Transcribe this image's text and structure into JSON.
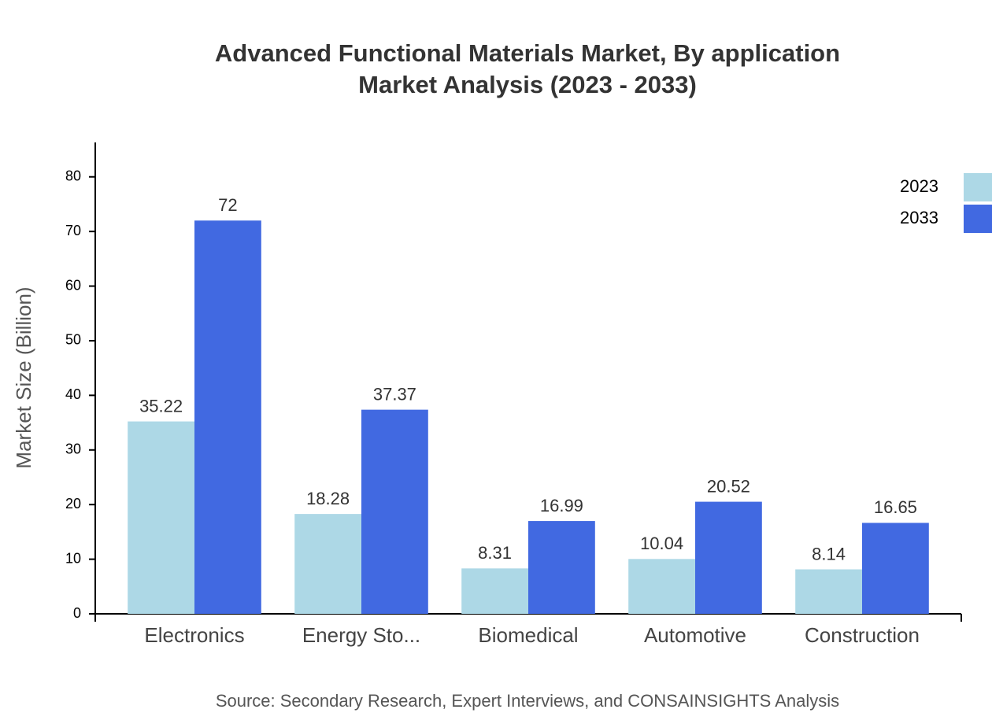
{
  "chart_data": {
    "type": "bar",
    "title": "Advanced Functional Materials Market, By application",
    "subtitle": "Market Analysis (2023 - 2033)",
    "y_label": "Market Size (Billion)",
    "source": "Source: Secondary Research, Expert Interviews, and CONSAINSIGHTS Analysis",
    "categories": [
      "Electronics",
      "Energy Sto...",
      "Biomedical",
      "Automotive",
      "Construction"
    ],
    "series": [
      {
        "name": "2023",
        "color": "#add8e6",
        "values": [
          35.22,
          18.28,
          8.31,
          10.04,
          8.14
        ]
      },
      {
        "name": "2033",
        "color": "#4169e1",
        "values": [
          72,
          37.37,
          16.99,
          20.52,
          16.65
        ]
      }
    ],
    "ylim": [
      0,
      86.3
    ],
    "yticks": [
      0,
      10,
      20,
      30,
      40,
      50,
      60,
      70,
      80
    ],
    "grid": false,
    "legend": "top-right"
  }
}
